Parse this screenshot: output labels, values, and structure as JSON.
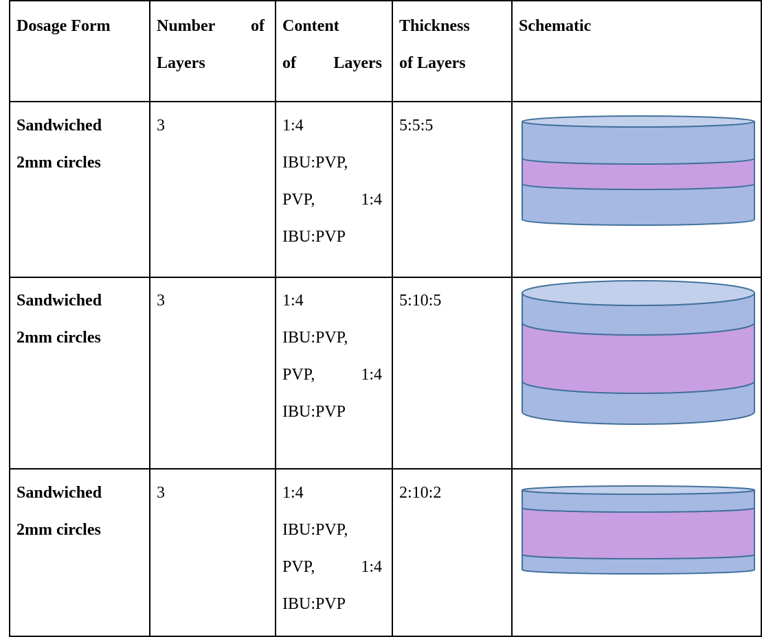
{
  "table": {
    "header": [
      [
        "Dosage Form"
      ],
      [
        "Number of",
        "Layers"
      ],
      [
        "Content",
        "of Layers"
      ],
      [
        "Thickness",
        "of Layers"
      ],
      [
        "Schematic"
      ]
    ],
    "rows": [
      [
        [
          "Sandwiched",
          "2mm circles"
        ],
        [
          "3"
        ],
        [
          "1:4",
          "IBU:PVP,",
          "PVP, 1:4",
          "IBU:PVP"
        ],
        [
          "5:5:5"
        ]
      ],
      [
        [
          "Sandwiched",
          "2mm circles"
        ],
        [
          "3"
        ],
        [
          "1:4",
          "IBU:PVP,",
          "PVP, 1:4",
          "IBU:PVP"
        ],
        [
          "5:10:5"
        ]
      ],
      [
        [
          "Sandwiched",
          "2mm circles"
        ],
        [
          "3"
        ],
        [
          "1:4",
          "IBU:PVP,",
          "PVP, 1:4",
          "IBU:PVP"
        ],
        [
          "2:10:2"
        ]
      ]
    ]
  }
}
